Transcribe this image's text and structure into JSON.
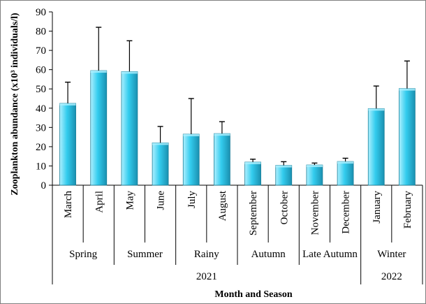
{
  "chart_data": {
    "type": "bar",
    "categories": [
      "March",
      "April",
      "May",
      "June",
      "July",
      "August",
      "September",
      "October",
      "November",
      "December",
      "January",
      "February"
    ],
    "values": [
      42.5,
      59.5,
      59,
      22,
      26.5,
      26.8,
      12,
      10.3,
      10.5,
      12.3,
      39.8,
      50.2
    ],
    "error_upper": [
      53.5,
      82,
      75,
      30.5,
      45,
      33,
      13.5,
      12.2,
      11.5,
      14,
      51.5,
      64.5
    ],
    "seasons": [
      {
        "label": "Spring",
        "start": 0,
        "end": 1
      },
      {
        "label": "Summer",
        "start": 2,
        "end": 3
      },
      {
        "label": "Rainy",
        "start": 4,
        "end": 5
      },
      {
        "label": "Autumn",
        "start": 6,
        "end": 7
      },
      {
        "label": "Late Autumn",
        "start": 8,
        "end": 9
      },
      {
        "label": "Winter",
        "start": 10,
        "end": 11
      }
    ],
    "years": [
      {
        "label": "2021",
        "start": 0,
        "end": 9
      },
      {
        "label": "2022",
        "start": 10,
        "end": 11
      }
    ],
    "yticks": [
      0,
      10,
      20,
      30,
      40,
      50,
      60,
      70,
      80,
      90
    ],
    "ylim": [
      0,
      90
    ],
    "ylabel": "Zooplankton  abundance (x10³ individuals/l)",
    "xlabel": "Month and Season",
    "bar_color": "#33ccee",
    "bar_light_color": "#aef0ff",
    "bar_dark_color": "#1a90b0",
    "grid": false
  }
}
